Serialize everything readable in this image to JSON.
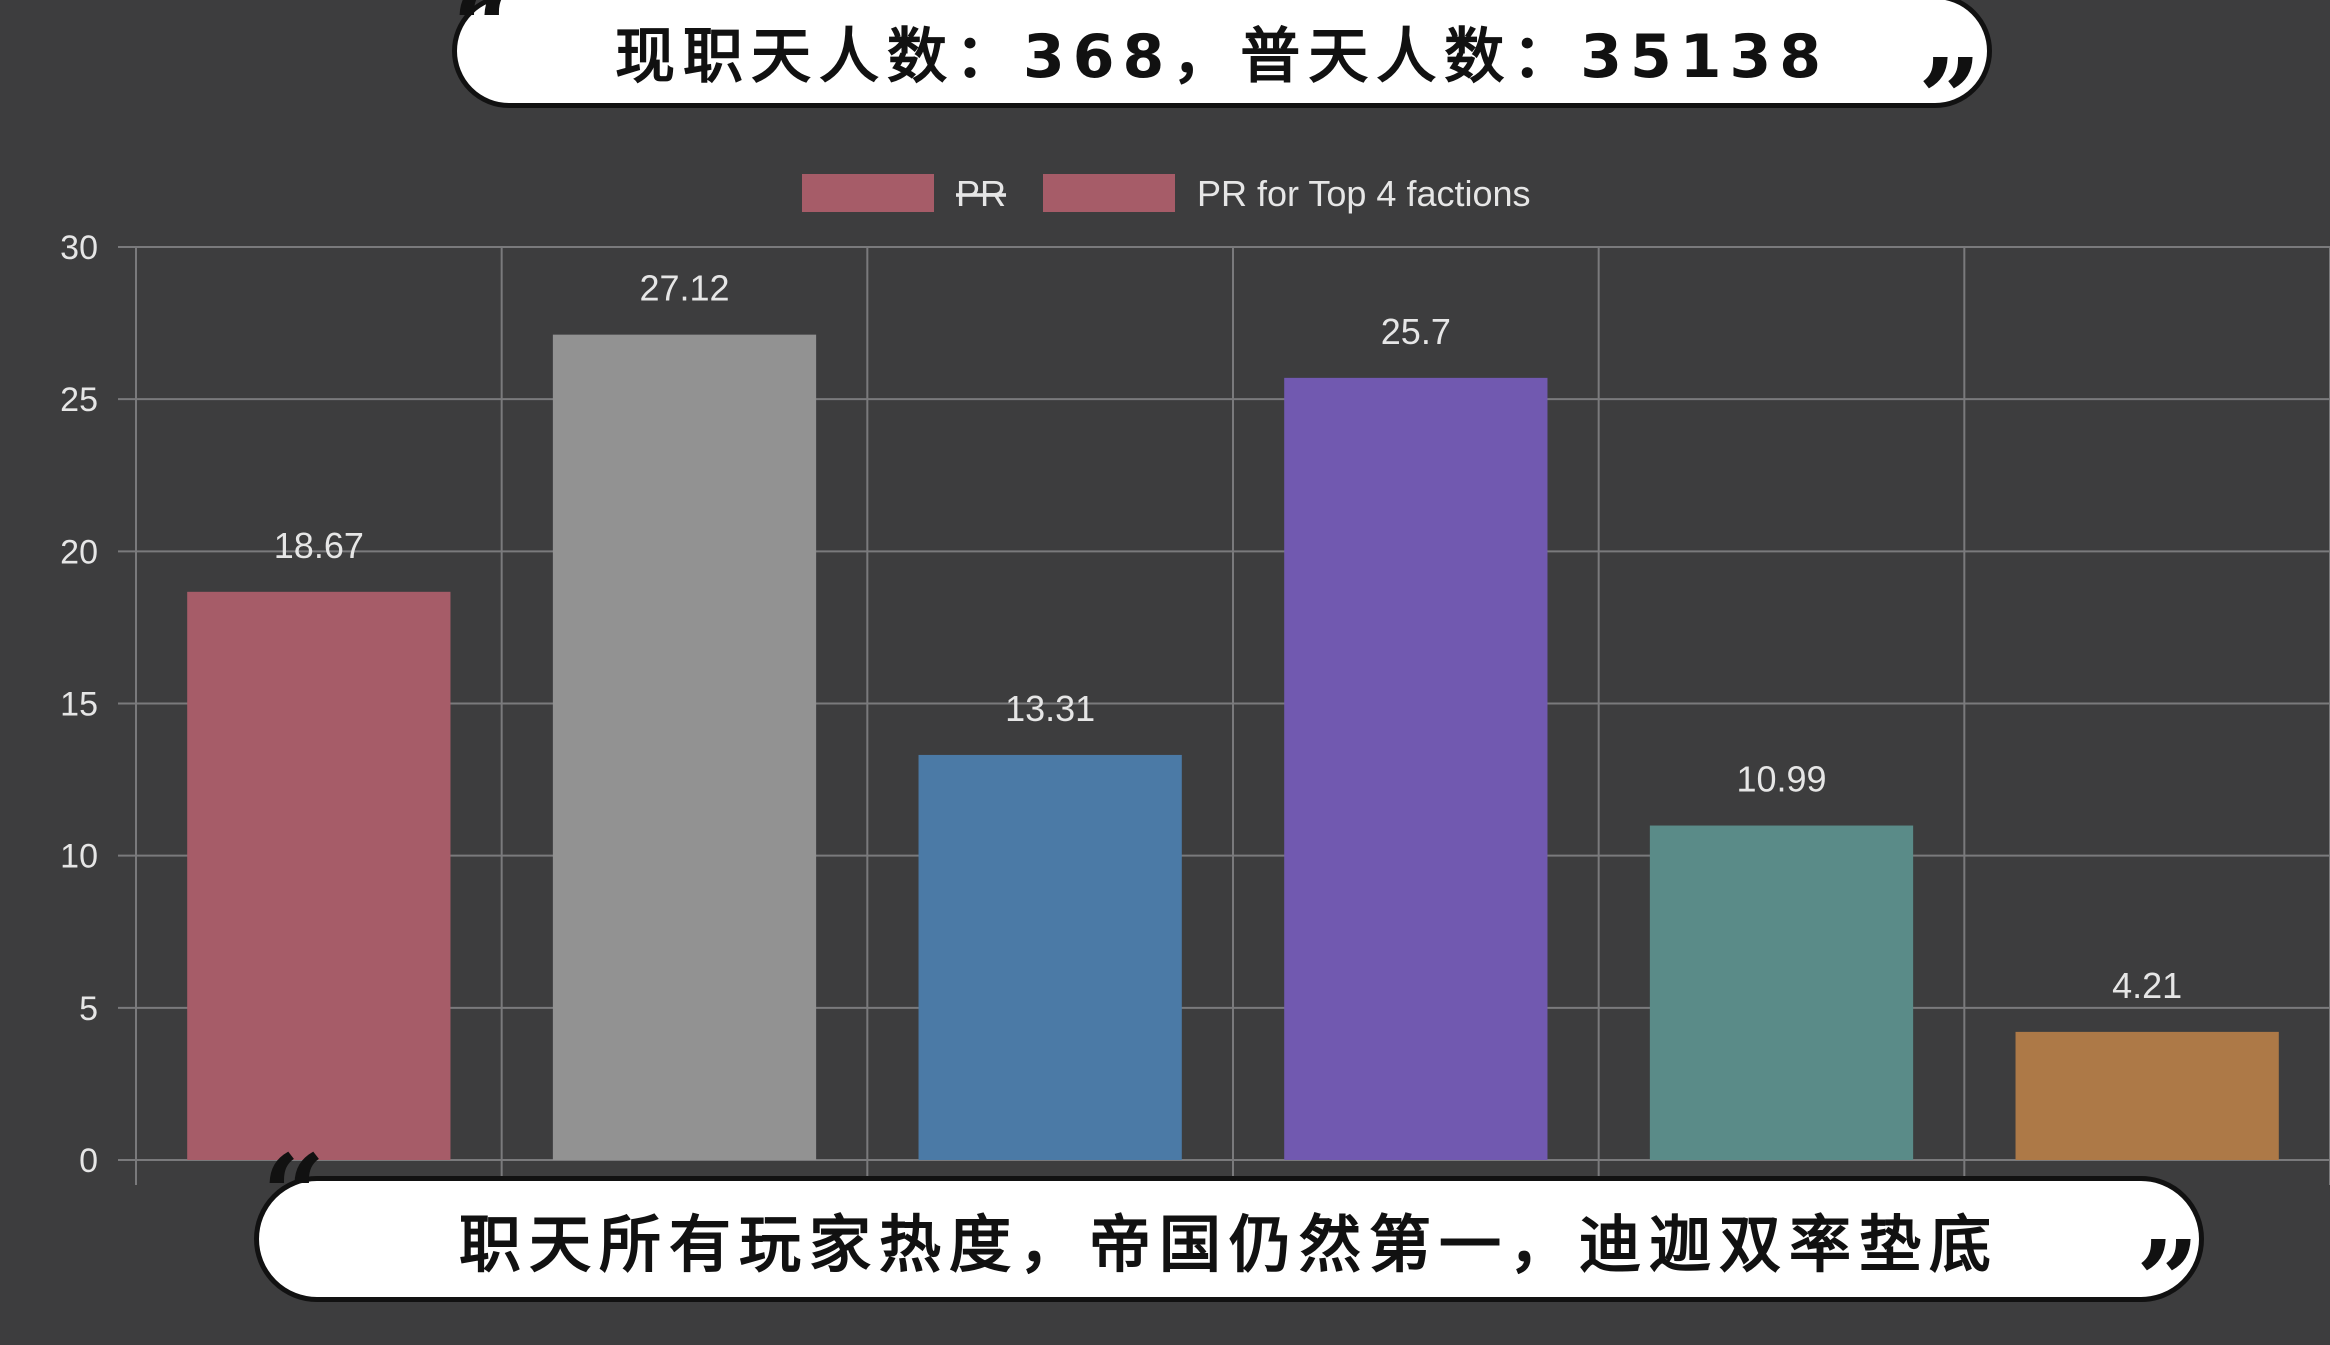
{
  "chart_data": {
    "type": "bar",
    "values": [
      18.67,
      27.12,
      13.31,
      25.7,
      10.99,
      4.21
    ],
    "bar_colors": [
      "#a65c68",
      "#929292",
      "#4b7aa6",
      "#7159b0",
      "#5a8b88",
      "#ad7947"
    ],
    "data_labels": [
      "18.67",
      "27.12",
      "13.31",
      "25.7",
      "10.99",
      "4.21"
    ],
    "ylim": [
      0,
      30
    ],
    "y_ticks": [
      "0",
      "5",
      "10",
      "15",
      "20",
      "25",
      "30"
    ],
    "grid": true,
    "legend": {
      "placement": "top-center",
      "items": [
        {
          "label": "PR",
          "color": "#a65c68",
          "hidden": true
        },
        {
          "label": "PR for Top 4 factions",
          "color": "#a65c68",
          "hidden": false
        }
      ]
    }
  },
  "captions": {
    "top": "现职天人数：368，普天人数：35138",
    "bottom": "职天所有玩家热度，帝国仍然第一，迪迦双率垫底",
    "open_quote": "“",
    "close_quote": "”"
  },
  "colors": {
    "background": "#3d3d3e",
    "grid": "#7a7a7c",
    "text": "#e6e6e6"
  }
}
